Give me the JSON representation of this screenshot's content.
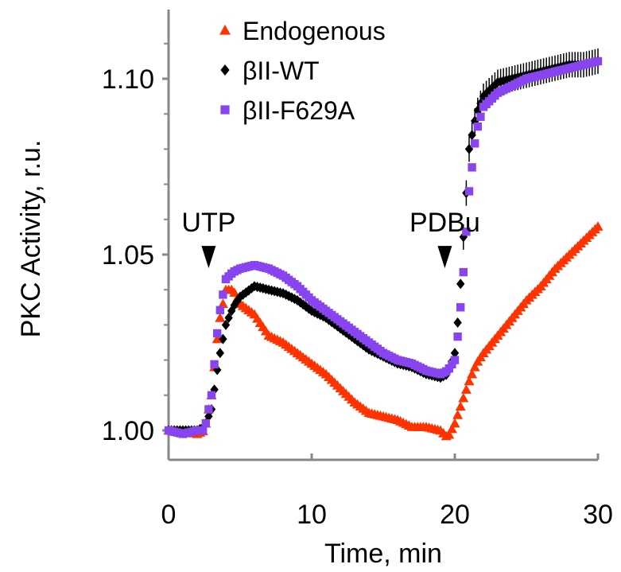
{
  "chart_data": {
    "type": "scatter",
    "xlabel": "Time, min",
    "ylabel": "PKC Activity, r.u.",
    "xlim": [
      0,
      30
    ],
    "ylim": [
      0.99,
      1.12
    ],
    "xticks": [
      0,
      10,
      20,
      30
    ],
    "yticks": [
      1.0,
      1.05,
      1.1
    ],
    "ytick_labels": [
      "1.00",
      "1.05",
      "1.10"
    ],
    "grid": false,
    "legend_position": "top-left",
    "annotations": [
      {
        "text": "UTP",
        "x": 2.8,
        "y": 1.052,
        "marker": "arrowhead-down"
      },
      {
        "text": "PDBu",
        "x": 19.3,
        "y": 1.052,
        "marker": "arrowhead-down"
      }
    ],
    "series": [
      {
        "name": "Endogenous",
        "color": "#ff3300",
        "marker": "triangle",
        "points": [
          [
            0,
            1.0
          ],
          [
            1,
            1.0
          ],
          [
            2,
            0.999
          ],
          [
            2.5,
            1.0
          ],
          [
            3,
            1.01
          ],
          [
            3.5,
            1.03
          ],
          [
            4,
            1.04
          ],
          [
            4.5,
            1.04
          ],
          [
            5,
            1.036
          ],
          [
            6,
            1.033
          ],
          [
            7,
            1.027
          ],
          [
            8,
            1.025
          ],
          [
            9,
            1.022
          ],
          [
            10,
            1.019
          ],
          [
            11,
            1.016
          ],
          [
            12,
            1.012
          ],
          [
            13,
            1.008
          ],
          [
            14,
            1.005
          ],
          [
            15,
            1.004
          ],
          [
            16,
            1.003
          ],
          [
            17,
            1.001
          ],
          [
            18,
            1.001
          ],
          [
            19,
            1.0
          ],
          [
            19.5,
            0.998
          ],
          [
            20,
            1.002
          ],
          [
            20.5,
            1.008
          ],
          [
            21,
            1.014
          ],
          [
            21.5,
            1.019
          ],
          [
            22,
            1.022
          ],
          [
            23,
            1.027
          ],
          [
            24,
            1.032
          ],
          [
            25,
            1.037
          ],
          [
            26,
            1.041
          ],
          [
            27,
            1.046
          ],
          [
            28,
            1.05
          ],
          [
            29,
            1.054
          ],
          [
            30,
            1.058
          ]
        ]
      },
      {
        "name": "βII-WT",
        "color": "#000000",
        "marker": "diamond",
        "points": [
          [
            0,
            1.0
          ],
          [
            1,
            1.0
          ],
          [
            2,
            1.0
          ],
          [
            2.5,
            1.001
          ],
          [
            3,
            1.006
          ],
          [
            3.5,
            1.02
          ],
          [
            4,
            1.03
          ],
          [
            4.5,
            1.035
          ],
          [
            5,
            1.038
          ],
          [
            6,
            1.041
          ],
          [
            7,
            1.04
          ],
          [
            8,
            1.039
          ],
          [
            9,
            1.037
          ],
          [
            10,
            1.034
          ],
          [
            11,
            1.032
          ],
          [
            12,
            1.029
          ],
          [
            13,
            1.026
          ],
          [
            14,
            1.023
          ],
          [
            15,
            1.021
          ],
          [
            16,
            1.019
          ],
          [
            17,
            1.018
          ],
          [
            18,
            1.016
          ],
          [
            19,
            1.015
          ],
          [
            19.5,
            1.016
          ],
          [
            20,
            1.022
          ],
          [
            20.3,
            1.035
          ],
          [
            20.6,
            1.055
          ],
          [
            21,
            1.08
          ],
          [
            21.5,
            1.09
          ],
          [
            22,
            1.095
          ],
          [
            23,
            1.099
          ],
          [
            24,
            1.1
          ],
          [
            25,
            1.101
          ],
          [
            26,
            1.102
          ],
          [
            27,
            1.103
          ],
          [
            28,
            1.104
          ],
          [
            29,
            1.104
          ],
          [
            30,
            1.105
          ]
        ]
      },
      {
        "name": "βII-F629A",
        "color": "#8844ee",
        "marker": "square",
        "points": [
          [
            0,
            1.0
          ],
          [
            1,
            0.999
          ],
          [
            2,
            1.0
          ],
          [
            2.5,
            1.0
          ],
          [
            3,
            1.01
          ],
          [
            3.5,
            1.032
          ],
          [
            4,
            1.043
          ],
          [
            4.5,
            1.045
          ],
          [
            5,
            1.046
          ],
          [
            6,
            1.047
          ],
          [
            7,
            1.046
          ],
          [
            8,
            1.044
          ],
          [
            9,
            1.041
          ],
          [
            10,
            1.037
          ],
          [
            11,
            1.034
          ],
          [
            12,
            1.031
          ],
          [
            13,
            1.028
          ],
          [
            14,
            1.025
          ],
          [
            15,
            1.022
          ],
          [
            16,
            1.02
          ],
          [
            17,
            1.019
          ],
          [
            18,
            1.017
          ],
          [
            19,
            1.016
          ],
          [
            19.5,
            1.017
          ],
          [
            20,
            1.02
          ],
          [
            20.3,
            1.03
          ],
          [
            20.6,
            1.045
          ],
          [
            21,
            1.068
          ],
          [
            21.5,
            1.085
          ],
          [
            22,
            1.092
          ],
          [
            23,
            1.096
          ],
          [
            24,
            1.098
          ],
          [
            25,
            1.1
          ],
          [
            26,
            1.101
          ],
          [
            27,
            1.102
          ],
          [
            28,
            1.103
          ],
          [
            29,
            1.104
          ],
          [
            30,
            1.105
          ]
        ]
      }
    ]
  }
}
